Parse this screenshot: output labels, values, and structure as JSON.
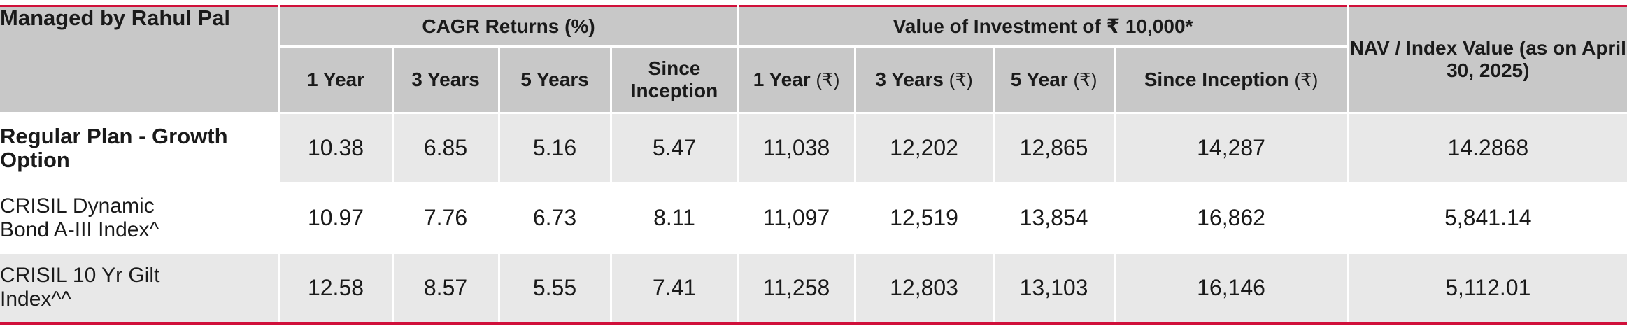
{
  "table": {
    "managed_by": "Managed by Rahul Pal",
    "group_headers": {
      "cagr": "CAGR Returns (%)",
      "value": "Value of Investment of ₹ 10,000*",
      "nav": "NAV / Index Value (as on April 30, 2025)"
    },
    "cagr_columns": [
      "1 Year",
      "3 Years",
      "5 Years",
      "Since Inception"
    ],
    "value_columns": [
      {
        "label": "1 Year",
        "unit": "(₹)"
      },
      {
        "label": "3 Years",
        "unit": "(₹)"
      },
      {
        "label": "5 Year",
        "unit": "(₹)"
      },
      {
        "label": "Since Inception",
        "unit": "(₹)"
      }
    ],
    "rows": [
      {
        "name": "Regular Plan - Growth Option",
        "cagr": [
          "10.38",
          "6.85",
          "5.16",
          "5.47"
        ],
        "value": [
          "11,038",
          "12,202",
          "12,865",
          "14,287"
        ],
        "nav": "14.2868"
      },
      {
        "name_line1": "CRISIL Dynamic",
        "name_line2": "Bond A-III Index^",
        "cagr": [
          "10.97",
          "7.76",
          "6.73",
          "8.11"
        ],
        "value": [
          "11,097",
          "12,519",
          "13,854",
          "16,862"
        ],
        "nav": "5,841.14"
      },
      {
        "name_line1": "CRISIL 10 Yr Gilt",
        "name_line2": "Index^^",
        "cagr": [
          "12.58",
          "8.57",
          "5.55",
          "7.41"
        ],
        "value": [
          "11,258",
          "12,803",
          "13,103",
          "16,146"
        ],
        "nav": "5,112.01"
      }
    ]
  },
  "colors": {
    "accent_border": "#d0103a",
    "header_bg": "#c8c8c8",
    "shaded_row_bg": "#e8e8e8",
    "text": "#1a1a1a"
  }
}
